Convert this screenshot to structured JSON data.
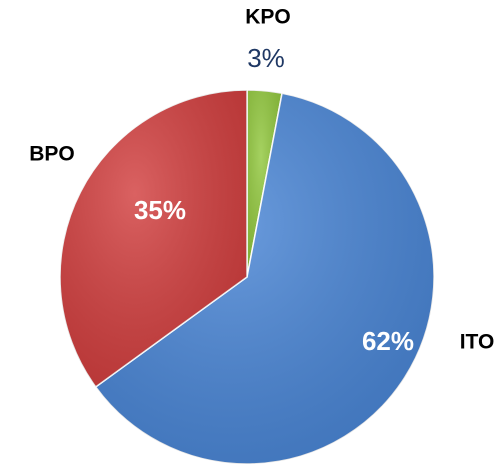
{
  "chart_data": {
    "type": "pie",
    "categories": [
      "KPO",
      "ITO",
      "BPO"
    ],
    "values": [
      3,
      62,
      35
    ],
    "value_labels": [
      "3%",
      "62%",
      "35%"
    ],
    "colors": [
      "#92c83e",
      "#4a86d6",
      "#d23f3f"
    ]
  }
}
